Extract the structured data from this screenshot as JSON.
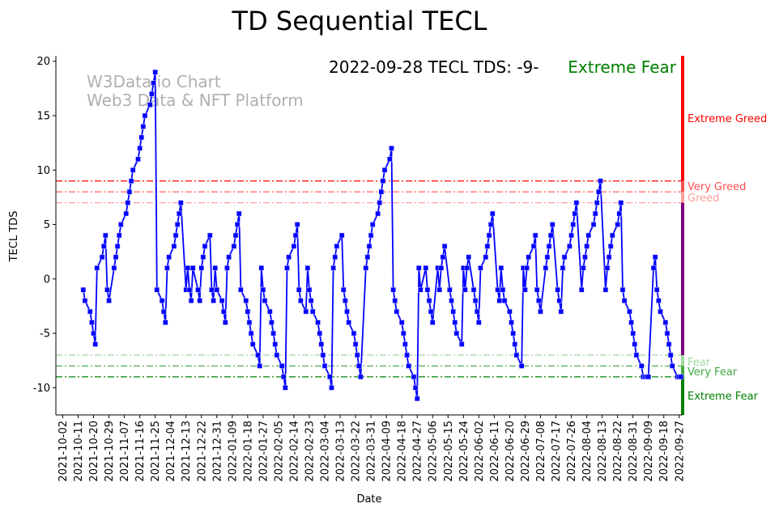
{
  "chart_data": {
    "type": "line",
    "title": "TD Sequential TECL",
    "xlabel": "Date",
    "ylabel": "TECL TDS",
    "xlim": [
      "2021-09-28",
      "2022-09-29"
    ],
    "ylim": [
      -12.5,
      20.5
    ],
    "yticks": [
      20,
      15,
      10,
      5,
      0,
      -5,
      -10
    ],
    "xtick_labels": [
      "2021-10-02",
      "2021-10-11",
      "2021-10-20",
      "2021-10-29",
      "2021-11-07",
      "2021-11-16",
      "2021-11-25",
      "2021-12-04",
      "2021-12-13",
      "2021-12-22",
      "2021-12-31",
      "2022-01-09",
      "2022-01-18",
      "2022-01-27",
      "2022-02-05",
      "2022-02-14",
      "2022-02-23",
      "2022-03-04",
      "2022-03-13",
      "2022-03-22",
      "2022-03-31",
      "2022-04-09",
      "2022-04-18",
      "2022-04-27",
      "2022-05-06",
      "2022-05-15",
      "2022-05-24",
      "2022-06-02",
      "2022-06-11",
      "2022-06-20",
      "2022-06-29",
      "2022-07-08",
      "2022-07-17",
      "2022-07-26",
      "2022-08-04",
      "2022-08-13",
      "2022-08-22",
      "2022-08-31",
      "2022-09-09",
      "2022-09-18",
      "2022-09-27"
    ],
    "grid": false,
    "series": [
      {
        "name": "TECL TDS",
        "color": "#0000ff",
        "marker": "square",
        "last_date": "2022-09-28",
        "date_basis": "trading days (weekdays), ending at last_date",
        "values": [
          -1,
          -2,
          -3,
          -4,
          -5,
          -6,
          1,
          2,
          3,
          4,
          -1,
          -2,
          1,
          2,
          3,
          4,
          5,
          6,
          7,
          8,
          9,
          10,
          11,
          12,
          13,
          14,
          15,
          16,
          17,
          18,
          19,
          -1,
          -2,
          -3,
          -4,
          1,
          2,
          3,
          4,
          5,
          6,
          7,
          -1,
          1,
          -1,
          -2,
          1,
          -1,
          -2,
          1,
          2,
          3,
          4,
          -1,
          -2,
          1,
          -1,
          -2,
          -3,
          -4,
          1,
          2,
          3,
          4,
          5,
          6,
          -1,
          -2,
          -3,
          -4,
          -5,
          -6,
          -7,
          -8,
          1,
          -1,
          -2,
          -3,
          -4,
          -5,
          -6,
          -7,
          -8,
          -9,
          -10,
          1,
          2,
          3,
          4,
          5,
          -1,
          -2,
          -3,
          1,
          -1,
          -2,
          -3,
          -4,
          -5,
          -6,
          -7,
          -8,
          -9,
          -10,
          1,
          2,
          3,
          4,
          -1,
          -2,
          -3,
          -4,
          -5,
          -6,
          -7,
          -8,
          -9,
          1,
          2,
          3,
          4,
          5,
          6,
          7,
          8,
          9,
          10,
          11,
          12,
          -1,
          -2,
          -3,
          -4,
          -5,
          -6,
          -7,
          -8,
          -9,
          -10,
          -11,
          1,
          -1,
          1,
          -1,
          -2,
          -3,
          -4,
          1,
          -1,
          1,
          2,
          3,
          -1,
          -2,
          -3,
          -4,
          -5,
          -6,
          1,
          -1,
          1,
          2,
          -1,
          -2,
          -3,
          -4,
          1,
          2,
          3,
          4,
          5,
          6,
          -1,
          -2,
          1,
          -1,
          -2,
          -3,
          -4,
          -5,
          -6,
          -7,
          -8,
          1,
          -1,
          1,
          2,
          3,
          4,
          -1,
          -2,
          -3,
          1,
          2,
          3,
          4,
          5,
          -1,
          -2,
          -3,
          1,
          2,
          3,
          4,
          5,
          6,
          7,
          -1,
          1,
          2,
          3,
          4,
          5,
          6,
          7,
          8,
          9,
          -1,
          1,
          2,
          3,
          4,
          5,
          6,
          7,
          -1,
          -2,
          -3,
          -4,
          -5,
          -6,
          -7,
          -8,
          -9,
          -9,
          -9,
          -9,
          1,
          2,
          -1,
          -2,
          -3,
          -4,
          -5,
          -6,
          -7,
          -8,
          -9,
          -9,
          -9
        ]
      }
    ],
    "reference_lines": [
      {
        "value": 9,
        "label": "Extreme Greed",
        "color": "#ff0000"
      },
      {
        "value": 8,
        "label": "Very Greed",
        "color": "#ff5050"
      },
      {
        "value": 7,
        "label": "Greed",
        "color": "#ffa0a0"
      },
      {
        "value": -7,
        "label": "Fear",
        "color": "#a0d8a0"
      },
      {
        "value": -8,
        "label": "Very Fear",
        "color": "#40a840"
      },
      {
        "value": -9,
        "label": "Extreme Fear",
        "color": "#008000"
      }
    ],
    "side_bar": {
      "greed_color": "#ff0000",
      "neutral_color": "#800080",
      "fear_color": "#008000"
    },
    "annotation": {
      "text": "2022-09-28 TECL TDS: -9-",
      "status": "Extreme Fear",
      "status_color": "#008000"
    },
    "watermark": [
      "W3Data.io Chart",
      "Web3 Data & NFT Platform"
    ]
  }
}
